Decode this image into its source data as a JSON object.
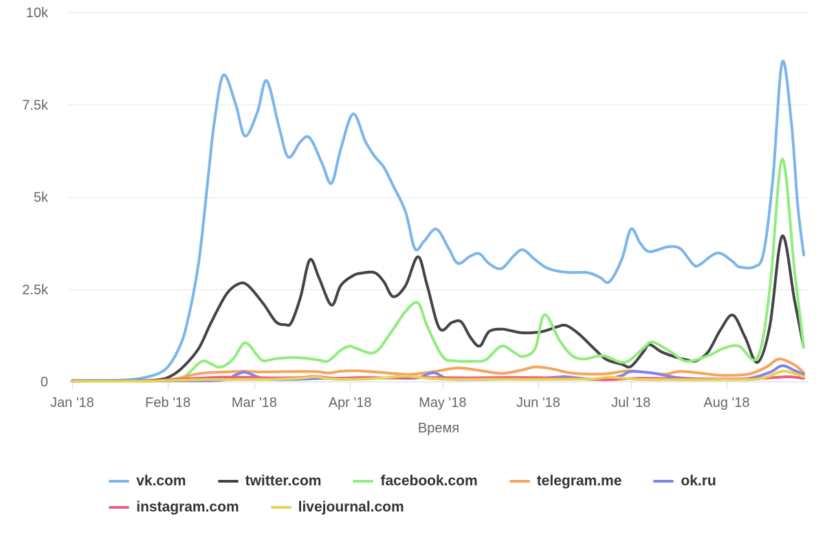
{
  "style": {
    "background": "#ffffff",
    "grid_color": "#e6e6e6",
    "axis_line_color": "#ccd6eb",
    "axis_text_color": "#666666",
    "legend_text_color": "#333333"
  },
  "chart_data": {
    "type": "line",
    "subtype": "spline",
    "title": "",
    "xlabel": "Время",
    "ylabel": "",
    "x_unit": "days_since_2018-01-01",
    "ylim": [
      0,
      10000
    ],
    "grid": "horizontal",
    "legend_position": "bottom",
    "x_ticks": [
      {
        "day": 0,
        "label": "Jan '18"
      },
      {
        "day": 31,
        "label": "Feb '18"
      },
      {
        "day": 59,
        "label": "Mar '18"
      },
      {
        "day": 90,
        "label": "Apr '18"
      },
      {
        "day": 120,
        "label": "May '18"
      },
      {
        "day": 151,
        "label": "Jun '18"
      },
      {
        "day": 181,
        "label": "Jul '18"
      },
      {
        "day": 212,
        "label": "Aug '18"
      }
    ],
    "y_ticks": [
      {
        "v": 0,
        "label": "0"
      },
      {
        "v": 2500,
        "label": "2.5k"
      },
      {
        "v": 5000,
        "label": "5k"
      },
      {
        "v": 7500,
        "label": "7.5k"
      },
      {
        "v": 10000,
        "label": "10k"
      }
    ],
    "series": [
      {
        "name": "vk.com",
        "color": "#7cb5ec",
        "points": [
          [
            0,
            30
          ],
          [
            8,
            30
          ],
          [
            14,
            35
          ],
          [
            20,
            60
          ],
          [
            24,
            120
          ],
          [
            28,
            220
          ],
          [
            31,
            400
          ],
          [
            34,
            800
          ],
          [
            37,
            1500
          ],
          [
            41,
            3240
          ],
          [
            44,
            5500
          ],
          [
            46,
            7000
          ],
          [
            49,
            8300
          ],
          [
            53,
            7500
          ],
          [
            56,
            6650
          ],
          [
            60,
            7300
          ],
          [
            63,
            8150
          ],
          [
            67,
            6900
          ],
          [
            70,
            6080
          ],
          [
            74,
            6500
          ],
          [
            77,
            6600
          ],
          [
            81,
            5900
          ],
          [
            84,
            5370
          ],
          [
            87,
            6300
          ],
          [
            91,
            7250
          ],
          [
            95,
            6500
          ],
          [
            98,
            6100
          ],
          [
            101,
            5800
          ],
          [
            104,
            5300
          ],
          [
            108,
            4600
          ],
          [
            111,
            3600
          ],
          [
            114,
            3800
          ],
          [
            118,
            4130
          ],
          [
            122,
            3600
          ],
          [
            125,
            3200
          ],
          [
            129,
            3400
          ],
          [
            132,
            3460
          ],
          [
            135,
            3200
          ],
          [
            139,
            3060
          ],
          [
            143,
            3400
          ],
          [
            146,
            3570
          ],
          [
            150,
            3300
          ],
          [
            154,
            3070
          ],
          [
            160,
            2960
          ],
          [
            167,
            2950
          ],
          [
            171,
            2820
          ],
          [
            174,
            2700
          ],
          [
            178,
            3300
          ],
          [
            181,
            4130
          ],
          [
            184,
            3750
          ],
          [
            187,
            3520
          ],
          [
            193,
            3650
          ],
          [
            197,
            3600
          ],
          [
            201,
            3190
          ],
          [
            203,
            3150
          ],
          [
            209,
            3480
          ],
          [
            214,
            3250
          ],
          [
            216,
            3110
          ],
          [
            221,
            3110
          ],
          [
            224,
            3500
          ],
          [
            227,
            5500
          ],
          [
            230,
            8650
          ],
          [
            233,
            7000
          ],
          [
            235,
            4800
          ],
          [
            237,
            3430
          ]
        ]
      },
      {
        "name": "twitter.com",
        "color": "#434348",
        "points": [
          [
            0,
            15
          ],
          [
            10,
            18
          ],
          [
            20,
            22
          ],
          [
            28,
            50
          ],
          [
            32,
            150
          ],
          [
            36,
            400
          ],
          [
            41,
            900
          ],
          [
            45,
            1600
          ],
          [
            50,
            2370
          ],
          [
            54,
            2650
          ],
          [
            57,
            2600
          ],
          [
            62,
            2100
          ],
          [
            66,
            1620
          ],
          [
            69,
            1540
          ],
          [
            71,
            1600
          ],
          [
            74,
            2300
          ],
          [
            77,
            3300
          ],
          [
            80,
            2800
          ],
          [
            84,
            2070
          ],
          [
            87,
            2600
          ],
          [
            91,
            2870
          ],
          [
            94,
            2940
          ],
          [
            98,
            2950
          ],
          [
            101,
            2700
          ],
          [
            104,
            2300
          ],
          [
            108,
            2600
          ],
          [
            112,
            3380
          ],
          [
            115,
            2600
          ],
          [
            119,
            1440
          ],
          [
            123,
            1600
          ],
          [
            126,
            1620
          ],
          [
            129,
            1200
          ],
          [
            132,
            960
          ],
          [
            135,
            1350
          ],
          [
            139,
            1420
          ],
          [
            142,
            1380
          ],
          [
            146,
            1320
          ],
          [
            152,
            1350
          ],
          [
            157,
            1480
          ],
          [
            160,
            1520
          ],
          [
            164,
            1300
          ],
          [
            169,
            900
          ],
          [
            173,
            600
          ],
          [
            178,
            470
          ],
          [
            181,
            410
          ],
          [
            185,
            800
          ],
          [
            187,
            1000
          ],
          [
            191,
            800
          ],
          [
            196,
            650
          ],
          [
            199,
            590
          ],
          [
            202,
            560
          ],
          [
            206,
            800
          ],
          [
            210,
            1400
          ],
          [
            214,
            1800
          ],
          [
            218,
            1200
          ],
          [
            222,
            520
          ],
          [
            226,
            1500
          ],
          [
            230,
            3940
          ],
          [
            234,
            2200
          ],
          [
            237,
            930
          ]
        ]
      },
      {
        "name": "facebook.com",
        "color": "#90ed7d",
        "points": [
          [
            0,
            10
          ],
          [
            12,
            12
          ],
          [
            24,
            15
          ],
          [
            30,
            25
          ],
          [
            35,
            60
          ],
          [
            38,
            250
          ],
          [
            42,
            550
          ],
          [
            45,
            480
          ],
          [
            48,
            390
          ],
          [
            52,
            600
          ],
          [
            56,
            1050
          ],
          [
            60,
            700
          ],
          [
            62,
            560
          ],
          [
            66,
            620
          ],
          [
            71,
            650
          ],
          [
            76,
            630
          ],
          [
            80,
            580
          ],
          [
            83,
            560
          ],
          [
            87,
            850
          ],
          [
            90,
            960
          ],
          [
            92,
            900
          ],
          [
            98,
            790
          ],
          [
            103,
            1300
          ],
          [
            108,
            1900
          ],
          [
            112,
            2130
          ],
          [
            115,
            1500
          ],
          [
            120,
            680
          ],
          [
            124,
            560
          ],
          [
            130,
            550
          ],
          [
            134,
            590
          ],
          [
            139,
            960
          ],
          [
            143,
            800
          ],
          [
            146,
            680
          ],
          [
            150,
            900
          ],
          [
            153,
            1810
          ],
          [
            158,
            1100
          ],
          [
            162,
            700
          ],
          [
            166,
            610
          ],
          [
            172,
            700
          ],
          [
            179,
            520
          ],
          [
            185,
            900
          ],
          [
            188,
            1070
          ],
          [
            194,
            800
          ],
          [
            199,
            550
          ],
          [
            206,
            700
          ],
          [
            211,
            900
          ],
          [
            216,
            960
          ],
          [
            222,
            650
          ],
          [
            226,
            2500
          ],
          [
            230,
            6020
          ],
          [
            234,
            3000
          ],
          [
            237,
            930
          ]
        ]
      },
      {
        "name": "telegram.me",
        "color": "#f7a35c",
        "points": [
          [
            0,
            10
          ],
          [
            12,
            12
          ],
          [
            24,
            20
          ],
          [
            30,
            40
          ],
          [
            35,
            100
          ],
          [
            40,
            200
          ],
          [
            44,
            240
          ],
          [
            50,
            260
          ],
          [
            56,
            280
          ],
          [
            61,
            260
          ],
          [
            70,
            270
          ],
          [
            79,
            270
          ],
          [
            83,
            230
          ],
          [
            87,
            280
          ],
          [
            92,
            290
          ],
          [
            98,
            260
          ],
          [
            104,
            220
          ],
          [
            110,
            195
          ],
          [
            118,
            280
          ],
          [
            125,
            370
          ],
          [
            132,
            300
          ],
          [
            139,
            220
          ],
          [
            145,
            300
          ],
          [
            150,
            395
          ],
          [
            155,
            350
          ],
          [
            161,
            240
          ],
          [
            168,
            200
          ],
          [
            174,
            220
          ],
          [
            180,
            290
          ],
          [
            186,
            250
          ],
          [
            192,
            200
          ],
          [
            197,
            275
          ],
          [
            205,
            215
          ],
          [
            210,
            170
          ],
          [
            219,
            200
          ],
          [
            225,
            400
          ],
          [
            229,
            610
          ],
          [
            234,
            450
          ],
          [
            237,
            240
          ]
        ]
      },
      {
        "name": "ok.ru",
        "color": "#8085e9",
        "points": [
          [
            0,
            8
          ],
          [
            12,
            9
          ],
          [
            24,
            12
          ],
          [
            36,
            18
          ],
          [
            45,
            25
          ],
          [
            50,
            60
          ],
          [
            53,
            180
          ],
          [
            56,
            250
          ],
          [
            60,
            130
          ],
          [
            64,
            60
          ],
          [
            72,
            60
          ],
          [
            81,
            85
          ],
          [
            87,
            70
          ],
          [
            96,
            90
          ],
          [
            104,
            95
          ],
          [
            112,
            100
          ],
          [
            117,
            240
          ],
          [
            122,
            70
          ],
          [
            130,
            55
          ],
          [
            139,
            65
          ],
          [
            148,
            80
          ],
          [
            157,
            120
          ],
          [
            160,
            130
          ],
          [
            166,
            80
          ],
          [
            172,
            60
          ],
          [
            178,
            160
          ],
          [
            181,
            270
          ],
          [
            188,
            230
          ],
          [
            195,
            120
          ],
          [
            201,
            80
          ],
          [
            210,
            60
          ],
          [
            219,
            80
          ],
          [
            226,
            250
          ],
          [
            230,
            430
          ],
          [
            234,
            300
          ],
          [
            237,
            190
          ]
        ]
      },
      {
        "name": "instagram.com",
        "color": "#f15c80",
        "points": [
          [
            0,
            8
          ],
          [
            12,
            9
          ],
          [
            24,
            12
          ],
          [
            35,
            60
          ],
          [
            43,
            100
          ],
          [
            50,
            120
          ],
          [
            58,
            110
          ],
          [
            65,
            100
          ],
          [
            74,
            110
          ],
          [
            79,
            140
          ],
          [
            85,
            90
          ],
          [
            94,
            110
          ],
          [
            103,
            100
          ],
          [
            114,
            110
          ],
          [
            128,
            100
          ],
          [
            141,
            110
          ],
          [
            154,
            100
          ],
          [
            168,
            60
          ],
          [
            174,
            50
          ],
          [
            183,
            90
          ],
          [
            192,
            80
          ],
          [
            204,
            70
          ],
          [
            217,
            70
          ],
          [
            226,
            100
          ],
          [
            232,
            130
          ],
          [
            237,
            90
          ]
        ]
      },
      {
        "name": "livejournal.com",
        "color": "#e4d354",
        "points": [
          [
            0,
            8
          ],
          [
            12,
            9
          ],
          [
            24,
            10
          ],
          [
            43,
            50
          ],
          [
            65,
            60
          ],
          [
            75,
            100
          ],
          [
            79,
            130
          ],
          [
            83,
            80
          ],
          [
            87,
            60
          ],
          [
            95,
            70
          ],
          [
            101,
            100
          ],
          [
            108,
            150
          ],
          [
            115,
            90
          ],
          [
            122,
            60
          ],
          [
            132,
            60
          ],
          [
            143,
            60
          ],
          [
            154,
            60
          ],
          [
            168,
            70
          ],
          [
            174,
            120
          ],
          [
            183,
            60
          ],
          [
            195,
            50
          ],
          [
            210,
            50
          ],
          [
            221,
            60
          ],
          [
            226,
            150
          ],
          [
            230,
            280
          ],
          [
            234,
            220
          ],
          [
            237,
            130
          ]
        ]
      }
    ]
  },
  "legend": {
    "rows": [
      5,
      2
    ]
  }
}
